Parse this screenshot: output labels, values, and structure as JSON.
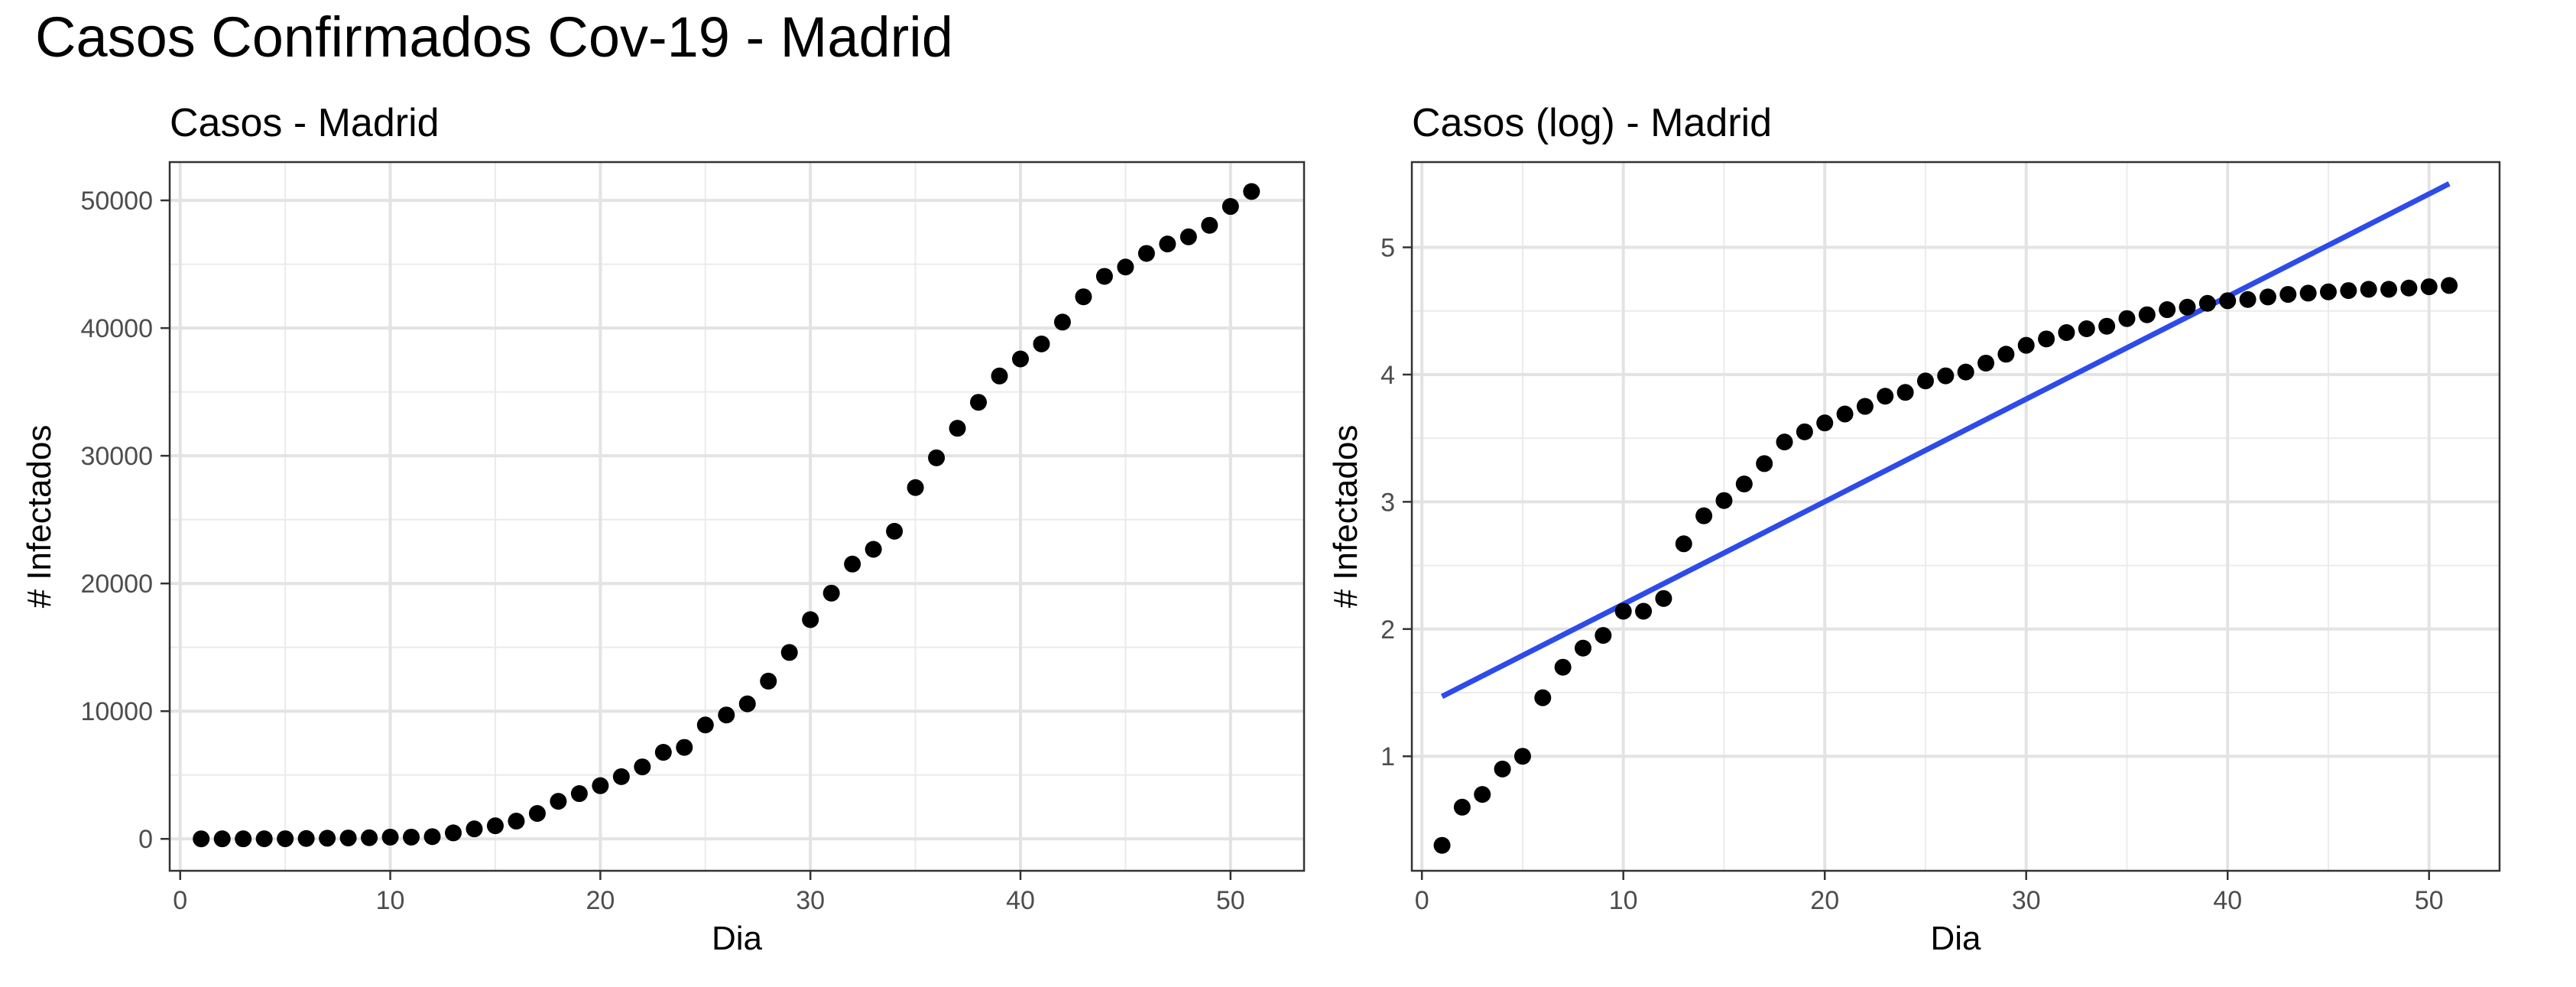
{
  "title": "Casos Confirmados Cov-19 - Madrid",
  "chart_data": [
    {
      "type": "scatter",
      "title": "Casos - Madrid",
      "xlabel": "Dia",
      "ylabel": "# Infectados",
      "xlim": [
        -0.5,
        53.5
      ],
      "ylim": [
        -2500,
        53000
      ],
      "x_ticks": [
        0,
        10,
        20,
        30,
        40,
        50
      ],
      "y_ticks": [
        0,
        10000,
        20000,
        30000,
        40000,
        50000
      ],
      "x_tick_labels": [
        "0",
        "10",
        "20",
        "30",
        "40",
        "50"
      ],
      "y_tick_labels": [
        "0",
        "10000",
        "20000",
        "30000",
        "40000",
        "50000"
      ],
      "grid": true,
      "series": [
        {
          "point_color": "#000000",
          "x": [
            1,
            2,
            3,
            4,
            5,
            6,
            7,
            8,
            9,
            10,
            11,
            12,
            13,
            14,
            15,
            16,
            17,
            18,
            19,
            20,
            21,
            22,
            23,
            24,
            25,
            26,
            27,
            28,
            29,
            30,
            31,
            32,
            33,
            34,
            35,
            36,
            37,
            38,
            39,
            40,
            41,
            42,
            43,
            44,
            45,
            46,
            47,
            48,
            49,
            50,
            51
          ],
          "y": [
            2,
            4,
            5,
            8,
            10,
            29,
            50,
            70,
            90,
            137,
            137,
            174,
            469,
            782,
            1024,
            1388,
            1990,
            2940,
            3544,
            4165,
            4871,
            5637,
            6777,
            7165,
            8921,
            9702,
            10575,
            12352,
            14597,
            17166,
            19243,
            21520,
            22677,
            24090,
            27509,
            29840,
            32155,
            34188,
            36249,
            37584,
            38758,
            40469,
            42450,
            44052,
            44783,
            45849,
            46587,
            47146,
            48048,
            49526,
            50694
          ]
        }
      ]
    },
    {
      "type": "scatter",
      "title": "Casos (log) - Madrid",
      "xlabel": "Dia",
      "ylabel": "# Infectados",
      "xlim": [
        -0.5,
        53.5
      ],
      "ylim": [
        0.1,
        5.67
      ],
      "x_ticks": [
        0,
        10,
        20,
        30,
        40,
        50
      ],
      "y_ticks": [
        1,
        2,
        3,
        4,
        5
      ],
      "x_tick_labels": [
        "0",
        "10",
        "20",
        "30",
        "40",
        "50"
      ],
      "y_tick_labels": [
        "1",
        "2",
        "3",
        "4",
        "5"
      ],
      "grid": true,
      "series": [
        {
          "point_color": "#000000",
          "x": [
            1,
            2,
            3,
            4,
            5,
            6,
            7,
            8,
            9,
            10,
            11,
            12,
            13,
            14,
            15,
            16,
            17,
            18,
            19,
            20,
            21,
            22,
            23,
            24,
            25,
            26,
            27,
            28,
            29,
            30,
            31,
            32,
            33,
            34,
            35,
            36,
            37,
            38,
            39,
            40,
            41,
            42,
            43,
            44,
            45,
            46,
            47,
            48,
            49,
            50,
            51
          ],
          "y": [
            0.3,
            0.6,
            0.7,
            0.9,
            1.0,
            1.46,
            1.7,
            1.85,
            1.95,
            2.14,
            2.14,
            2.24,
            2.67,
            2.89,
            3.01,
            3.14,
            3.3,
            3.47,
            3.55,
            3.62,
            3.69,
            3.75,
            3.83,
            3.86,
            3.95,
            3.99,
            4.02,
            4.09,
            4.16,
            4.23,
            4.28,
            4.33,
            4.36,
            4.38,
            4.44,
            4.47,
            4.51,
            4.53,
            4.56,
            4.58,
            4.59,
            4.61,
            4.63,
            4.64,
            4.65,
            4.66,
            4.67,
            4.67,
            4.68,
            4.69,
            4.7
          ]
        }
      ],
      "fit_line": {
        "color": "#2E4BEA",
        "x": [
          1,
          51
        ],
        "y": [
          1.47,
          5.5
        ]
      }
    }
  ]
}
